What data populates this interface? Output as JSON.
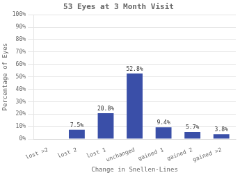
{
  "chart_data": {
    "type": "bar",
    "title": "53 Eyes at 3 Month Visit",
    "x_label": "Change in Snellen-Lines",
    "y_label": "Percentage of Eyes",
    "categories": [
      "lost >2",
      "lost 2",
      "lost 1",
      "unchanged",
      "gained 1",
      "gained 2",
      "gained >2"
    ],
    "values": [
      0.0,
      7.5,
      20.8,
      52.8,
      9.4,
      5.7,
      3.8
    ],
    "value_labels": [
      null,
      "7.5%",
      "20.8%",
      "52.8%",
      "9.4%",
      "5.7%",
      "3.8%"
    ],
    "data_labels": true,
    "color": "#3a4fa8",
    "ylim": [
      0,
      100
    ],
    "yticks": [
      {
        "value": 0,
        "label": "0%"
      },
      {
        "value": 10,
        "label": "10%"
      },
      {
        "value": 20,
        "label": "20%"
      },
      {
        "value": 30,
        "label": "30%"
      },
      {
        "value": 40,
        "label": "40%"
      },
      {
        "value": 50,
        "label": "50%"
      },
      {
        "value": 60,
        "label": "60%"
      },
      {
        "value": 70,
        "label": "70%"
      },
      {
        "value": 80,
        "label": "80%"
      },
      {
        "value": 90,
        "label": "90%"
      },
      {
        "value": 100,
        "label": "100%"
      }
    ],
    "grid": true
  }
}
